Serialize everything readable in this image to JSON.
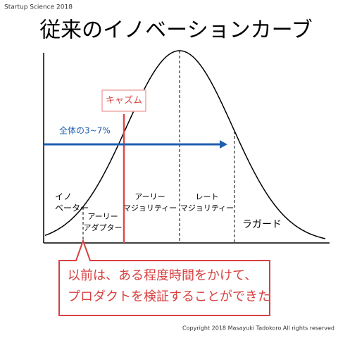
{
  "header": {
    "brand": "Startup Science 2018",
    "title": "従来のイノベーションカーブ"
  },
  "chasm": {
    "label": "キャズム",
    "share": "全体の3~7%"
  },
  "segments": [
    {
      "lines": [
        "イノ",
        "ベーター"
      ]
    },
    {
      "lines": [
        "アーリー",
        "アダプター"
      ]
    },
    {
      "lines": [
        "アーリー",
        "マジョリティー"
      ]
    },
    {
      "lines": [
        "レート",
        "マジョリティー"
      ]
    },
    {
      "lines": [
        "ラガード"
      ]
    }
  ],
  "callout": {
    "lines": [
      "以前は、ある程度時間をかけて、",
      "プロダクトを検証することができた"
    ]
  },
  "footer": {
    "copyright": "Copyright 2018 Masayuki Tadokoro All rights reserved"
  }
}
